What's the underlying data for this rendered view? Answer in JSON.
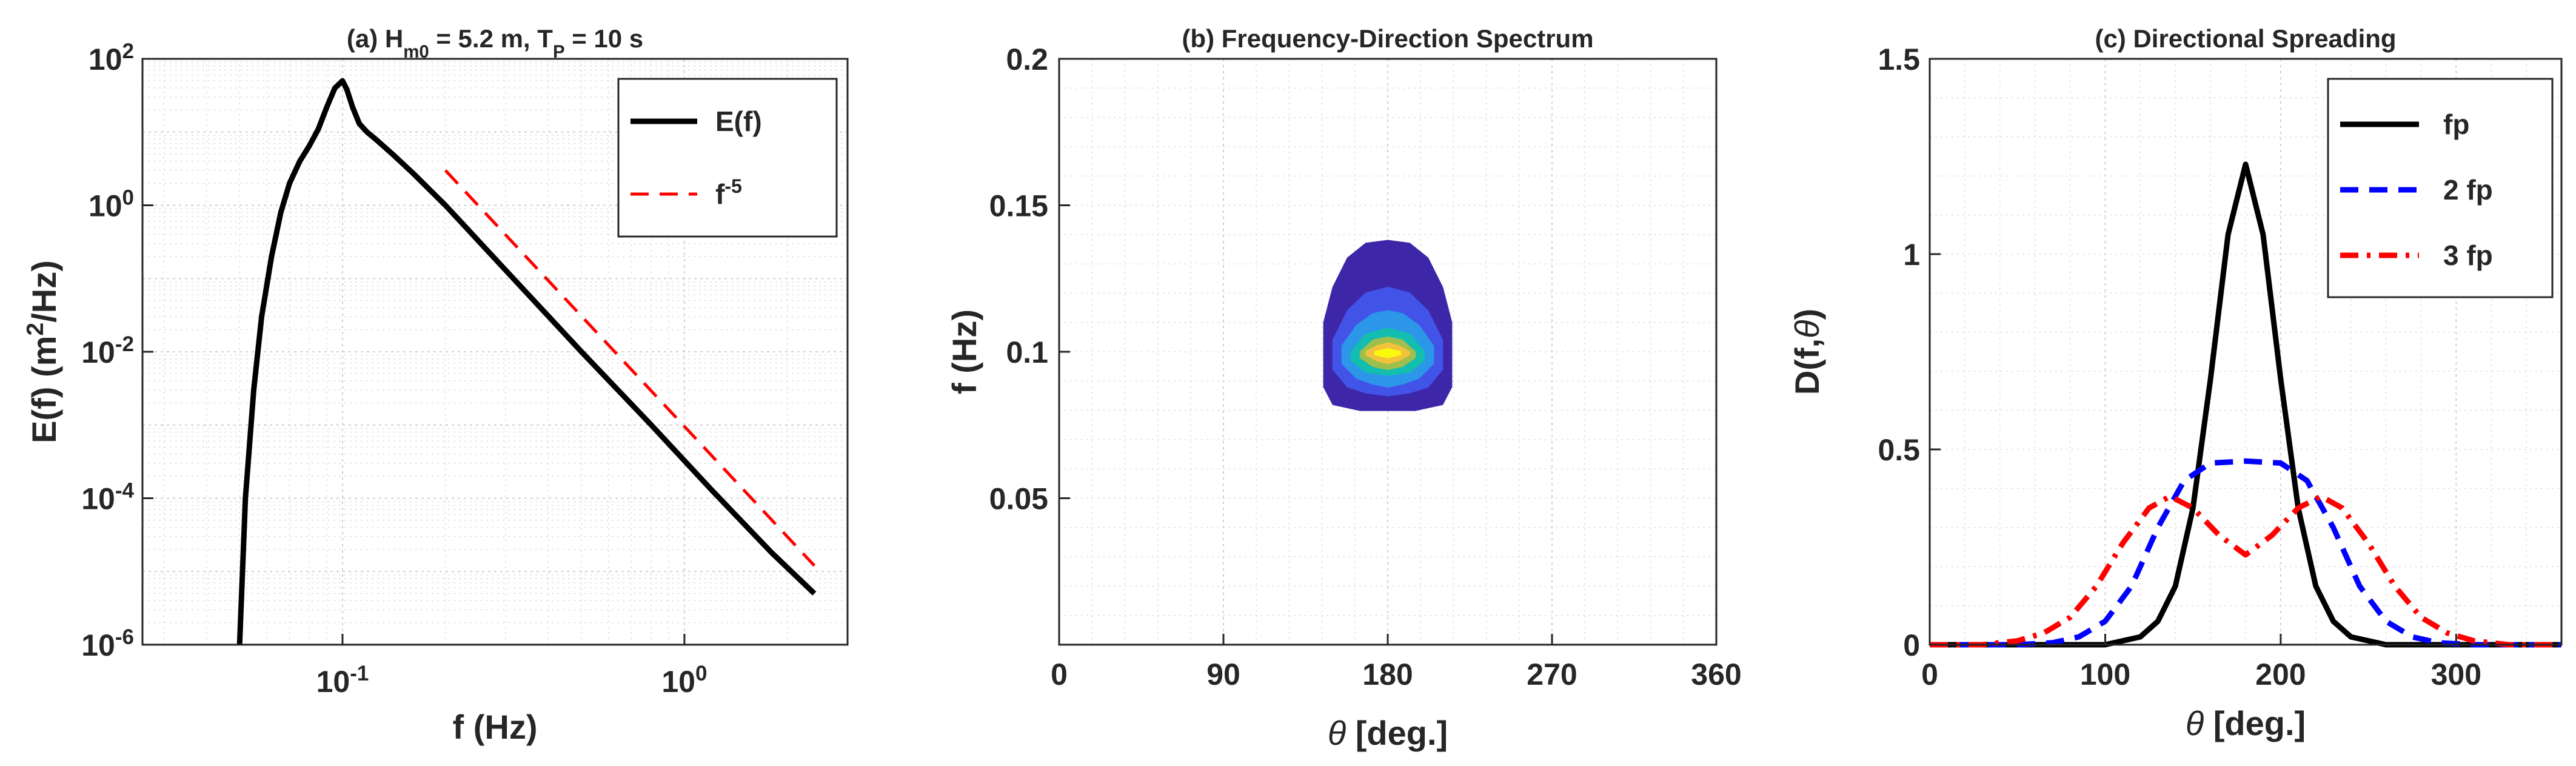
{
  "chart_data": [
    {
      "id": "a",
      "type": "line",
      "title_parts": [
        "(a) H",
        "m0",
        " = 5.2 m, T",
        "P",
        " = 10 s"
      ],
      "xlabel": "f (Hz)",
      "ylabel_parts": [
        "E(f)  (m",
        "2",
        "/Hz)"
      ],
      "xscale": "log",
      "yscale": "log",
      "xlim": [
        0.026,
        3.0
      ],
      "ylim": [
        1e-06,
        100
      ],
      "xticks": [
        {
          "value": 0.1,
          "base": "10",
          "exp": "-1"
        },
        {
          "value": 1,
          "base": "10",
          "exp": "0"
        }
      ],
      "yticks": [
        {
          "value": 1e-06,
          "base": "10",
          "exp": "-6"
        },
        {
          "value": 0.0001,
          "base": "10",
          "exp": "-4"
        },
        {
          "value": 0.01,
          "base": "10",
          "exp": "-2"
        },
        {
          "value": 1,
          "base": "10",
          "exp": "0"
        },
        {
          "value": 100,
          "base": "10",
          "exp": "2"
        }
      ],
      "grid": true,
      "legend": {
        "position": "top-right"
      },
      "series": [
        {
          "name": "E(f)",
          "label_parts": [
            "E(f)"
          ],
          "color": "#000000",
          "style": "solid",
          "x": [
            0.05,
            0.052,
            0.055,
            0.058,
            0.062,
            0.066,
            0.07,
            0.075,
            0.08,
            0.085,
            0.09,
            0.095,
            0.1,
            0.103,
            0.107,
            0.112,
            0.118,
            0.125,
            0.14,
            0.16,
            0.2,
            0.3,
            0.5,
            0.8,
            1.2,
            1.8,
            2.4
          ],
          "y": [
            1e-06,
            0.0001,
            0.003,
            0.03,
            0.2,
            0.8,
            2.0,
            4.0,
            6.5,
            11.0,
            22.0,
            40.0,
            50.0,
            38.0,
            22.0,
            13.0,
            10.0,
            8.0,
            5.0,
            2.8,
            1.0,
            0.13,
            0.01,
            0.001,
            0.00013,
            1.8e-05,
            5e-06
          ]
        },
        {
          "name": "f^-5",
          "label_parts": [
            "f",
            "-5"
          ],
          "color": "#ff0000",
          "style": "dashed",
          "x": [
            0.2,
            2.4
          ],
          "y": [
            3.0,
            1.2e-05
          ]
        }
      ]
    },
    {
      "id": "b",
      "type": "heatmap",
      "title": "(b) Frequency-Direction Spectrum",
      "xlabel_parts": [
        "θ",
        " [deg.]"
      ],
      "ylabel": "f (Hz)",
      "xlim": [
        0,
        360
      ],
      "ylim": [
        0,
        0.2
      ],
      "xticks": [
        "0",
        "90",
        "180",
        "270",
        "360"
      ],
      "xtick_values": [
        0,
        90,
        180,
        270,
        360
      ],
      "yticks": [
        "0.05",
        "0.1",
        "0.15",
        "0.2"
      ],
      "ytick_values": [
        0.05,
        0.1,
        0.15,
        0.2
      ],
      "grid": true,
      "peak": {
        "theta": 180,
        "f": 0.1
      },
      "contour_levels": [
        {
          "color": "#3e26a8",
          "theta": [
            145,
            150,
            158,
            168,
            180,
            192,
            202,
            210,
            215,
            215,
            210,
            195,
            180,
            165,
            150,
            145
          ],
          "f": [
            0.11,
            0.122,
            0.132,
            0.137,
            0.138,
            0.137,
            0.132,
            0.122,
            0.11,
            0.088,
            0.082,
            0.08,
            0.08,
            0.08,
            0.082,
            0.088
          ]
        },
        {
          "color": "#4253e8",
          "theta": [
            150,
            158,
            168,
            180,
            192,
            202,
            210,
            210,
            202,
            192,
            180,
            168,
            158,
            150
          ],
          "f": [
            0.104,
            0.114,
            0.12,
            0.122,
            0.12,
            0.114,
            0.104,
            0.094,
            0.088,
            0.086,
            0.085,
            0.086,
            0.088,
            0.094
          ]
        },
        {
          "color": "#2c96e8",
          "theta": [
            155,
            163,
            172,
            180,
            188,
            197,
            205,
            205,
            197,
            188,
            180,
            172,
            163,
            155
          ],
          "f": [
            0.102,
            0.109,
            0.113,
            0.114,
            0.113,
            0.109,
            0.102,
            0.096,
            0.091,
            0.089,
            0.088,
            0.089,
            0.091,
            0.096
          ]
        },
        {
          "color": "#13bdaf",
          "theta": [
            160,
            168,
            180,
            192,
            200,
            200,
            192,
            180,
            168,
            160
          ],
          "f": [
            0.1,
            0.106,
            0.108,
            0.106,
            0.1,
            0.097,
            0.093,
            0.092,
            0.093,
            0.097
          ]
        },
        {
          "color": "#9ebf4e",
          "theta": [
            165,
            172,
            180,
            188,
            195,
            195,
            188,
            180,
            172,
            165
          ],
          "f": [
            0.1,
            0.104,
            0.105,
            0.104,
            0.1,
            0.098,
            0.095,
            0.094,
            0.095,
            0.098
          ]
        },
        {
          "color": "#f2c33a",
          "theta": [
            168,
            174,
            180,
            186,
            192,
            192,
            186,
            180,
            174,
            168
          ],
          "f": [
            0.1,
            0.102,
            0.103,
            0.102,
            0.1,
            0.099,
            0.097,
            0.096,
            0.097,
            0.099
          ]
        },
        {
          "color": "#f9fb0e",
          "theta": [
            173,
            180,
            187,
            187,
            180,
            173
          ],
          "f": [
            0.1,
            0.101,
            0.1,
            0.099,
            0.098,
            0.099
          ]
        }
      ]
    },
    {
      "id": "c",
      "type": "line",
      "title": "(c) Directional Spreading",
      "xlabel_parts": [
        "θ",
        " [deg.]"
      ],
      "ylabel_parts": [
        "D(f,",
        "θ",
        ")"
      ],
      "xlim": [
        0,
        360
      ],
      "ylim": [
        0,
        1.5
      ],
      "xticks": [
        "0",
        "100",
        "200",
        "300"
      ],
      "xtick_values": [
        0,
        100,
        200,
        300
      ],
      "yticks": [
        "0",
        "0.5",
        "1",
        "1.5"
      ],
      "ytick_values": [
        0,
        0.5,
        1,
        1.5
      ],
      "grid": true,
      "legend": {
        "position": "top-right"
      },
      "series": [
        {
          "name": "fp",
          "color": "#000000",
          "style": "solid",
          "x": [
            0,
            100,
            120,
            130,
            140,
            150,
            160,
            170,
            180,
            190,
            200,
            210,
            220,
            230,
            240,
            260,
            360
          ],
          "y": [
            0,
            0.0,
            0.02,
            0.06,
            0.15,
            0.35,
            0.68,
            1.05,
            1.23,
            1.05,
            0.68,
            0.35,
            0.15,
            0.06,
            0.02,
            0.0,
            0
          ]
        },
        {
          "name": "2 fp",
          "color": "#0000ff",
          "style": "dashed",
          "x": [
            0,
            50,
            70,
            85,
            100,
            115,
            130,
            145,
            160,
            180,
            200,
            215,
            230,
            245,
            260,
            275,
            290,
            310,
            360
          ],
          "y": [
            0,
            0.0,
            0.005,
            0.02,
            0.06,
            0.15,
            0.3,
            0.42,
            0.465,
            0.47,
            0.465,
            0.42,
            0.3,
            0.15,
            0.06,
            0.02,
            0.005,
            0.0,
            0
          ]
        },
        {
          "name": "3 fp",
          "color": "#ff0000",
          "style": "dashdot",
          "x": [
            0,
            30,
            50,
            65,
            80,
            95,
            110,
            125,
            137,
            150,
            165,
            180,
            195,
            210,
            223,
            235,
            250,
            265,
            280,
            295,
            310,
            330,
            360
          ],
          "y": [
            0,
            0.0,
            0.01,
            0.03,
            0.07,
            0.15,
            0.26,
            0.35,
            0.38,
            0.35,
            0.28,
            0.23,
            0.28,
            0.35,
            0.38,
            0.35,
            0.26,
            0.15,
            0.07,
            0.03,
            0.01,
            0.0,
            0
          ]
        }
      ]
    }
  ]
}
